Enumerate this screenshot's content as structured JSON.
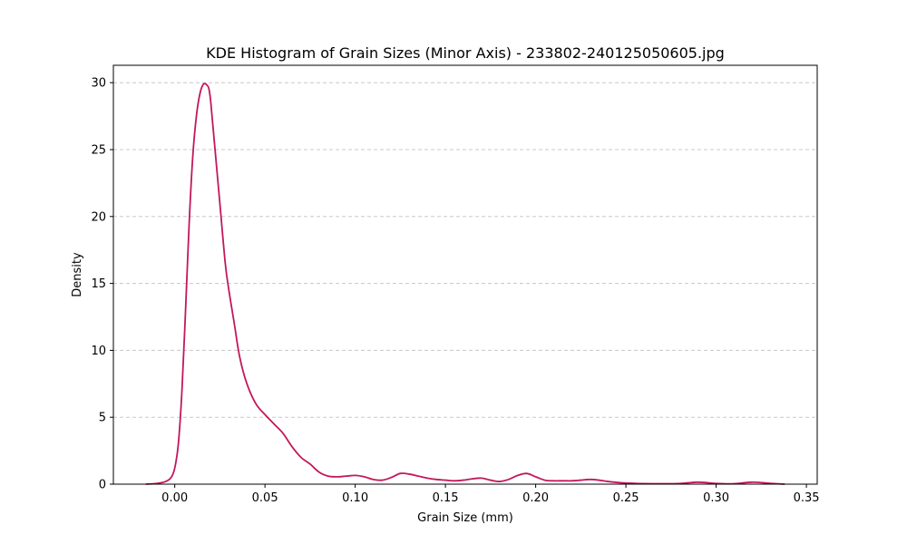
{
  "chart_data": {
    "type": "line",
    "title": "KDE Histogram of Grain Sizes (Minor Axis) - 233802-240125050605.jpg",
    "xlabel": "Grain Size (mm)",
    "ylabel": "Density",
    "xlim": [
      -0.034,
      0.356
    ],
    "ylim": [
      0,
      31.3
    ],
    "xticks": [
      0.0,
      0.05,
      0.1,
      0.15,
      0.2,
      0.25,
      0.3,
      0.35
    ],
    "xtick_labels": [
      "0.00",
      "0.05",
      "0.10",
      "0.15",
      "0.20",
      "0.25",
      "0.30",
      "0.35"
    ],
    "yticks": [
      0,
      5,
      10,
      15,
      20,
      25,
      30
    ],
    "ytick_labels": [
      "0",
      "5",
      "10",
      "15",
      "20",
      "25",
      "30"
    ],
    "grid": "y-dashed",
    "line_color": "#c2185b",
    "series": [
      {
        "x": [
          -0.016,
          -0.01,
          -0.005,
          -0.002,
          0.0,
          0.002,
          0.004,
          0.006,
          0.008,
          0.01,
          0.012,
          0.014,
          0.016,
          0.018,
          0.019,
          0.02,
          0.022,
          0.025,
          0.028,
          0.03,
          0.033,
          0.036,
          0.04,
          0.045,
          0.05,
          0.055,
          0.06,
          0.065,
          0.07,
          0.075,
          0.08,
          0.085,
          0.09,
          0.095,
          0.1,
          0.105,
          0.11,
          0.115,
          0.12,
          0.125,
          0.13,
          0.135,
          0.14,
          0.145,
          0.15,
          0.155,
          0.16,
          0.165,
          0.17,
          0.175,
          0.18,
          0.185,
          0.19,
          0.195,
          0.2,
          0.205,
          0.21,
          0.215,
          0.22,
          0.225,
          0.23,
          0.235,
          0.24,
          0.25,
          0.26,
          0.27,
          0.28,
          0.29,
          0.3,
          0.31,
          0.32,
          0.33,
          0.338
        ],
        "y": [
          0.0,
          0.05,
          0.2,
          0.5,
          1.2,
          3.0,
          7.0,
          13.0,
          19.5,
          24.5,
          27.5,
          29.2,
          29.9,
          29.8,
          29.5,
          28.5,
          25.5,
          21.0,
          16.5,
          14.5,
          12.0,
          9.5,
          7.5,
          6.0,
          5.2,
          4.5,
          3.8,
          2.8,
          2.0,
          1.5,
          0.9,
          0.6,
          0.55,
          0.6,
          0.65,
          0.55,
          0.35,
          0.3,
          0.5,
          0.8,
          0.75,
          0.6,
          0.45,
          0.35,
          0.3,
          0.25,
          0.3,
          0.4,
          0.45,
          0.3,
          0.2,
          0.35,
          0.65,
          0.8,
          0.55,
          0.3,
          0.25,
          0.25,
          0.25,
          0.3,
          0.35,
          0.3,
          0.2,
          0.08,
          0.04,
          0.03,
          0.05,
          0.15,
          0.05,
          0.03,
          0.15,
          0.06,
          0.0
        ]
      }
    ]
  }
}
